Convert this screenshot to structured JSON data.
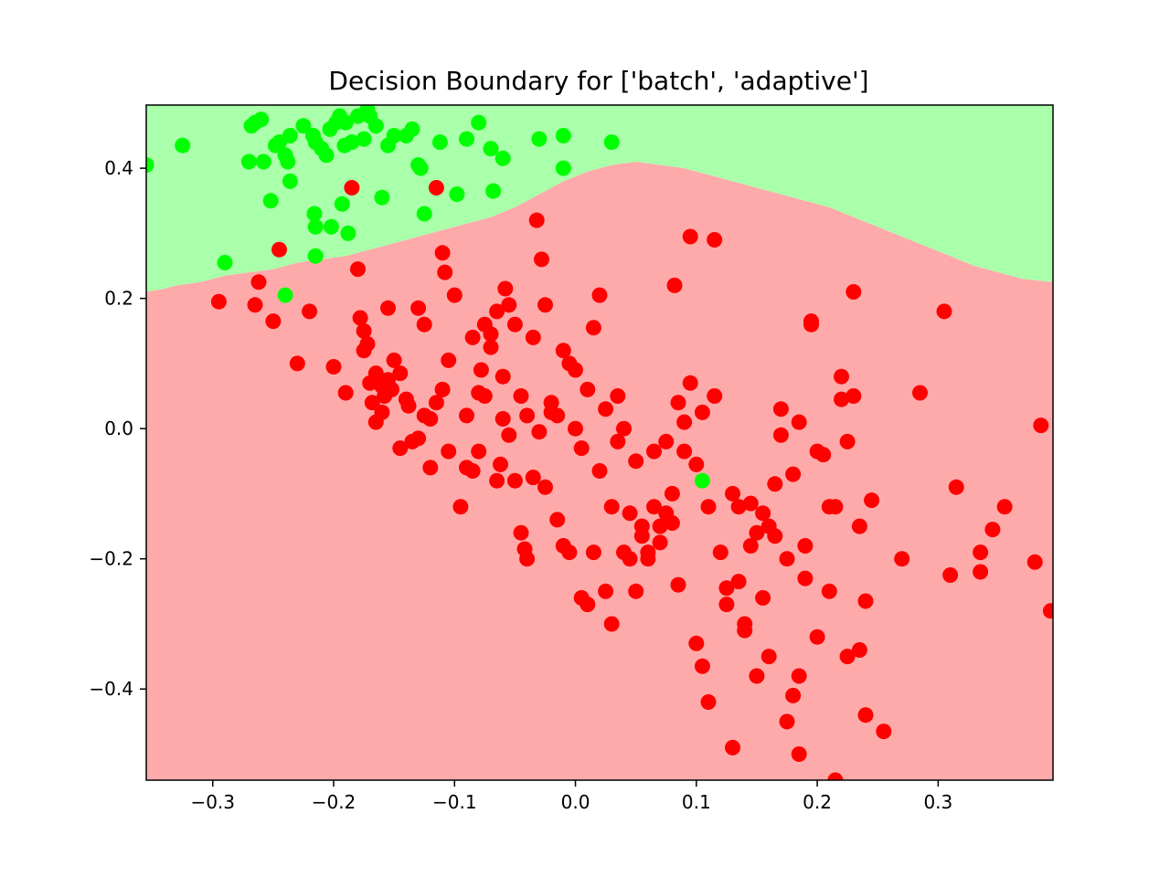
{
  "chart_data": {
    "type": "scatter",
    "title": "Decision Boundary for ['batch', 'adaptive']",
    "xlabel": "",
    "ylabel": "",
    "xlim": [
      -0.355,
      0.395
    ],
    "ylim": [
      -0.54,
      0.497
    ],
    "x_ticks": [
      -0.3,
      -0.2,
      -0.1,
      0.0,
      0.1,
      0.2,
      0.3
    ],
    "x_tick_labels": [
      "−0.3",
      "−0.2",
      "−0.1",
      "0.0",
      "0.1",
      "0.2",
      "0.3"
    ],
    "y_ticks": [
      0.4,
      0.2,
      0.0,
      -0.2,
      -0.4
    ],
    "y_tick_labels": [
      "0.4",
      "0.2",
      "0.0",
      "−0.2",
      "−0.4"
    ],
    "grid": false,
    "region_colors": {
      "class_0": "#aaffaa",
      "class_1": "#ffaaaa"
    },
    "decision_boundary": {
      "x": [
        -0.355,
        -0.34,
        -0.33,
        -0.31,
        -0.29,
        -0.27,
        -0.25,
        -0.23,
        -0.21,
        -0.19,
        -0.17,
        -0.15,
        -0.13,
        -0.11,
        -0.09,
        -0.07,
        -0.05,
        -0.03,
        -0.01,
        0.01,
        0.03,
        0.05,
        0.07,
        0.09,
        0.11,
        0.13,
        0.15,
        0.17,
        0.19,
        0.21,
        0.23,
        0.25,
        0.27,
        0.29,
        0.31,
        0.33,
        0.35,
        0.37,
        0.395
      ],
      "y": [
        0.21,
        0.215,
        0.22,
        0.225,
        0.235,
        0.24,
        0.245,
        0.255,
        0.26,
        0.265,
        0.275,
        0.285,
        0.295,
        0.305,
        0.315,
        0.325,
        0.34,
        0.36,
        0.38,
        0.395,
        0.405,
        0.41,
        0.405,
        0.4,
        0.39,
        0.38,
        0.37,
        0.36,
        0.35,
        0.34,
        0.325,
        0.31,
        0.295,
        0.28,
        0.265,
        0.25,
        0.24,
        0.23,
        0.225
      ]
    },
    "series": [
      {
        "color": "#00ff00",
        "points": [
          [
            -0.355,
            0.405
          ],
          [
            -0.325,
            0.435
          ],
          [
            -0.29,
            0.255
          ],
          [
            -0.27,
            0.41
          ],
          [
            -0.268,
            0.465
          ],
          [
            -0.265,
            0.47
          ],
          [
            -0.26,
            0.475
          ],
          [
            -0.258,
            0.41
          ],
          [
            -0.252,
            0.35
          ],
          [
            -0.248,
            0.435
          ],
          [
            -0.245,
            0.44
          ],
          [
            -0.24,
            0.42
          ],
          [
            -0.238,
            0.41
          ],
          [
            -0.236,
            0.45
          ],
          [
            -0.236,
            0.38
          ],
          [
            -0.24,
            0.205
          ],
          [
            -0.225,
            0.465
          ],
          [
            -0.217,
            0.45
          ],
          [
            -0.216,
            0.33
          ],
          [
            -0.215,
            0.31
          ],
          [
            -0.215,
            0.265
          ],
          [
            -0.215,
            0.44
          ],
          [
            -0.21,
            0.43
          ],
          [
            -0.206,
            0.42
          ],
          [
            -0.203,
            0.46
          ],
          [
            -0.202,
            0.31
          ],
          [
            -0.198,
            0.47
          ],
          [
            -0.195,
            0.48
          ],
          [
            -0.193,
            0.345
          ],
          [
            -0.191,
            0.435
          ],
          [
            -0.19,
            0.47
          ],
          [
            -0.188,
            0.3
          ],
          [
            -0.185,
            0.44
          ],
          [
            -0.18,
            0.48
          ],
          [
            -0.175,
            0.445
          ],
          [
            -0.172,
            0.49
          ],
          [
            -0.17,
            0.48
          ],
          [
            -0.165,
            0.465
          ],
          [
            -0.16,
            0.355
          ],
          [
            -0.155,
            0.435
          ],
          [
            -0.15,
            0.45
          ],
          [
            -0.14,
            0.45
          ],
          [
            -0.135,
            0.46
          ],
          [
            -0.13,
            0.405
          ],
          [
            -0.128,
            0.4
          ],
          [
            -0.125,
            0.33
          ],
          [
            -0.112,
            0.44
          ],
          [
            -0.098,
            0.36
          ],
          [
            -0.09,
            0.445
          ],
          [
            -0.08,
            0.47
          ],
          [
            -0.07,
            0.43
          ],
          [
            -0.068,
            0.365
          ],
          [
            -0.06,
            0.415
          ],
          [
            -0.03,
            0.445
          ],
          [
            -0.01,
            0.45
          ],
          [
            -0.01,
            0.4
          ],
          [
            0.03,
            0.44
          ],
          [
            0.105,
            -0.08
          ]
        ]
      },
      {
        "color": "#ff0000",
        "points": [
          [
            -0.295,
            0.195
          ],
          [
            -0.265,
            0.19
          ],
          [
            -0.262,
            0.225
          ],
          [
            -0.25,
            0.165
          ],
          [
            -0.245,
            0.275
          ],
          [
            -0.23,
            0.1
          ],
          [
            -0.22,
            0.18
          ],
          [
            -0.2,
            0.095
          ],
          [
            -0.19,
            0.055
          ],
          [
            -0.18,
            0.245
          ],
          [
            -0.178,
            0.17
          ],
          [
            -0.175,
            0.15
          ],
          [
            -0.172,
            0.13
          ],
          [
            -0.17,
            0.07
          ],
          [
            -0.168,
            0.04
          ],
          [
            -0.165,
            0.085
          ],
          [
            -0.16,
            0.025
          ],
          [
            -0.158,
            0.05
          ],
          [
            -0.155,
            0.185
          ],
          [
            -0.152,
            0.06
          ],
          [
            -0.15,
            0.105
          ],
          [
            -0.145,
            0.085
          ],
          [
            -0.14,
            0.045
          ],
          [
            -0.138,
            0.035
          ],
          [
            -0.13,
            0.185
          ],
          [
            -0.125,
            0.16
          ],
          [
            -0.12,
            0.015
          ],
          [
            -0.115,
            0.04
          ],
          [
            -0.11,
            0.06
          ],
          [
            -0.105,
            -0.035
          ],
          [
            -0.1,
            0.205
          ],
          [
            -0.095,
            -0.12
          ],
          [
            -0.09,
            -0.06
          ],
          [
            -0.085,
            -0.065
          ],
          [
            -0.08,
            -0.035
          ],
          [
            -0.075,
            0.05
          ],
          [
            -0.07,
            0.125
          ],
          [
            -0.065,
            -0.08
          ],
          [
            -0.06,
            0.015
          ],
          [
            -0.055,
            -0.01
          ],
          [
            -0.05,
            -0.08
          ],
          [
            -0.045,
            -0.16
          ],
          [
            -0.04,
            -0.2
          ],
          [
            -0.035,
            -0.075
          ],
          [
            -0.03,
            -0.005
          ],
          [
            -0.025,
            -0.09
          ],
          [
            -0.02,
            0.025
          ],
          [
            -0.015,
            -0.14
          ],
          [
            -0.01,
            -0.18
          ],
          [
            -0.005,
            -0.19
          ],
          [
            0.0,
            0.09
          ],
          [
            0.005,
            -0.26
          ],
          [
            0.01,
            -0.27
          ],
          [
            0.015,
            -0.19
          ],
          [
            0.02,
            -0.065
          ],
          [
            0.025,
            -0.25
          ],
          [
            0.03,
            -0.12
          ],
          [
            0.035,
            -0.02
          ],
          [
            0.04,
            -0.19
          ],
          [
            0.045,
            -0.2
          ],
          [
            0.05,
            -0.25
          ],
          [
            0.055,
            -0.165
          ],
          [
            0.06,
            -0.19
          ],
          [
            0.065,
            -0.035
          ],
          [
            0.07,
            -0.175
          ],
          [
            0.075,
            -0.02
          ],
          [
            0.08,
            -0.145
          ],
          [
            0.085,
            0.04
          ],
          [
            0.09,
            -0.035
          ],
          [
            0.095,
            0.295
          ],
          [
            0.1,
            -0.33
          ],
          [
            0.105,
            -0.365
          ],
          [
            0.11,
            -0.42
          ],
          [
            0.115,
            0.29
          ],
          [
            0.12,
            -0.19
          ],
          [
            0.125,
            -0.27
          ],
          [
            0.13,
            -0.49
          ],
          [
            0.135,
            -0.12
          ],
          [
            0.14,
            -0.3
          ],
          [
            0.145,
            -0.18
          ],
          [
            0.15,
            -0.38
          ],
          [
            0.155,
            -0.26
          ],
          [
            0.16,
            -0.35
          ],
          [
            0.165,
            -0.165
          ],
          [
            0.17,
            0.03
          ],
          [
            0.175,
            -0.45
          ],
          [
            0.18,
            -0.41
          ],
          [
            0.185,
            -0.38
          ],
          [
            0.19,
            -0.23
          ],
          [
            0.195,
            0.165
          ],
          [
            0.2,
            -0.32
          ],
          [
            0.205,
            -0.04
          ],
          [
            0.21,
            -0.25
          ],
          [
            0.215,
            -0.12
          ],
          [
            0.22,
            0.045
          ],
          [
            0.225,
            -0.02
          ],
          [
            0.23,
            0.21
          ],
          [
            0.235,
            -0.34
          ],
          [
            0.24,
            -0.44
          ],
          [
            0.245,
            -0.11
          ],
          [
            0.255,
            -0.465
          ],
          [
            0.27,
            -0.2
          ],
          [
            0.285,
            0.055
          ],
          [
            0.305,
            0.18
          ],
          [
            0.31,
            -0.225
          ],
          [
            0.315,
            -0.09
          ],
          [
            0.335,
            -0.19
          ],
          [
            0.335,
            -0.22
          ],
          [
            0.345,
            -0.155
          ],
          [
            0.355,
            -0.12
          ],
          [
            0.38,
            -0.205
          ],
          [
            0.385,
            0.005
          ],
          [
            0.393,
            -0.28
          ],
          [
            -0.185,
            0.37
          ],
          [
            -0.175,
            0.12
          ],
          [
            -0.165,
            0.01
          ],
          [
            -0.16,
            0.065
          ],
          [
            -0.155,
            0.075
          ],
          [
            -0.145,
            -0.03
          ],
          [
            -0.135,
            -0.02
          ],
          [
            -0.13,
            -0.015
          ],
          [
            -0.125,
            0.02
          ],
          [
            -0.12,
            -0.06
          ],
          [
            -0.115,
            0.37
          ],
          [
            -0.11,
            0.27
          ],
          [
            -0.108,
            0.24
          ],
          [
            -0.105,
            0.105
          ],
          [
            -0.09,
            0.02
          ],
          [
            -0.085,
            0.14
          ],
          [
            -0.08,
            0.055
          ],
          [
            -0.078,
            0.09
          ],
          [
            -0.075,
            0.16
          ],
          [
            -0.07,
            0.145
          ],
          [
            -0.065,
            0.18
          ],
          [
            -0.062,
            -0.055
          ],
          [
            -0.06,
            0.08
          ],
          [
            -0.058,
            0.215
          ],
          [
            -0.055,
            0.19
          ],
          [
            -0.05,
            0.16
          ],
          [
            -0.045,
            0.05
          ],
          [
            -0.042,
            -0.185
          ],
          [
            -0.04,
            0.02
          ],
          [
            -0.035,
            0.14
          ],
          [
            -0.032,
            0.32
          ],
          [
            -0.028,
            0.26
          ],
          [
            -0.025,
            0.19
          ],
          [
            -0.02,
            0.04
          ],
          [
            -0.015,
            0.02
          ],
          [
            -0.01,
            0.12
          ],
          [
            -0.005,
            0.1
          ],
          [
            0.0,
            0.0
          ],
          [
            0.005,
            -0.03
          ],
          [
            0.01,
            0.06
          ],
          [
            0.015,
            0.155
          ],
          [
            0.02,
            0.205
          ],
          [
            0.025,
            0.03
          ],
          [
            0.03,
            -0.3
          ],
          [
            0.035,
            0.05
          ],
          [
            0.04,
            0.0
          ],
          [
            0.045,
            -0.13
          ],
          [
            0.05,
            -0.05
          ],
          [
            0.055,
            -0.15
          ],
          [
            0.06,
            -0.2
          ],
          [
            0.065,
            -0.12
          ],
          [
            0.07,
            -0.15
          ],
          [
            0.075,
            -0.13
          ],
          [
            0.08,
            -0.1
          ],
          [
            0.082,
            0.22
          ],
          [
            0.085,
            -0.24
          ],
          [
            0.09,
            0.01
          ],
          [
            0.095,
            0.07
          ],
          [
            0.1,
            -0.055
          ],
          [
            0.105,
            0.025
          ],
          [
            0.11,
            -0.12
          ],
          [
            0.115,
            0.05
          ],
          [
            0.125,
            -0.245
          ],
          [
            0.13,
            -0.1
          ],
          [
            0.135,
            -0.235
          ],
          [
            0.14,
            -0.31
          ],
          [
            0.145,
            -0.115
          ],
          [
            0.15,
            -0.16
          ],
          [
            0.155,
            -0.13
          ],
          [
            0.16,
            -0.15
          ],
          [
            0.165,
            -0.085
          ],
          [
            0.17,
            -0.01
          ],
          [
            0.175,
            -0.2
          ],
          [
            0.18,
            -0.07
          ],
          [
            0.185,
            0.01
          ],
          [
            0.19,
            -0.18
          ],
          [
            0.195,
            0.16
          ],
          [
            0.2,
            -0.035
          ],
          [
            0.21,
            -0.12
          ],
          [
            0.22,
            0.08
          ],
          [
            0.225,
            -0.35
          ],
          [
            0.23,
            0.05
          ],
          [
            0.235,
            -0.15
          ],
          [
            0.24,
            -0.265
          ],
          [
            0.215,
            -0.54
          ],
          [
            0.185,
            -0.5
          ]
        ]
      }
    ]
  }
}
